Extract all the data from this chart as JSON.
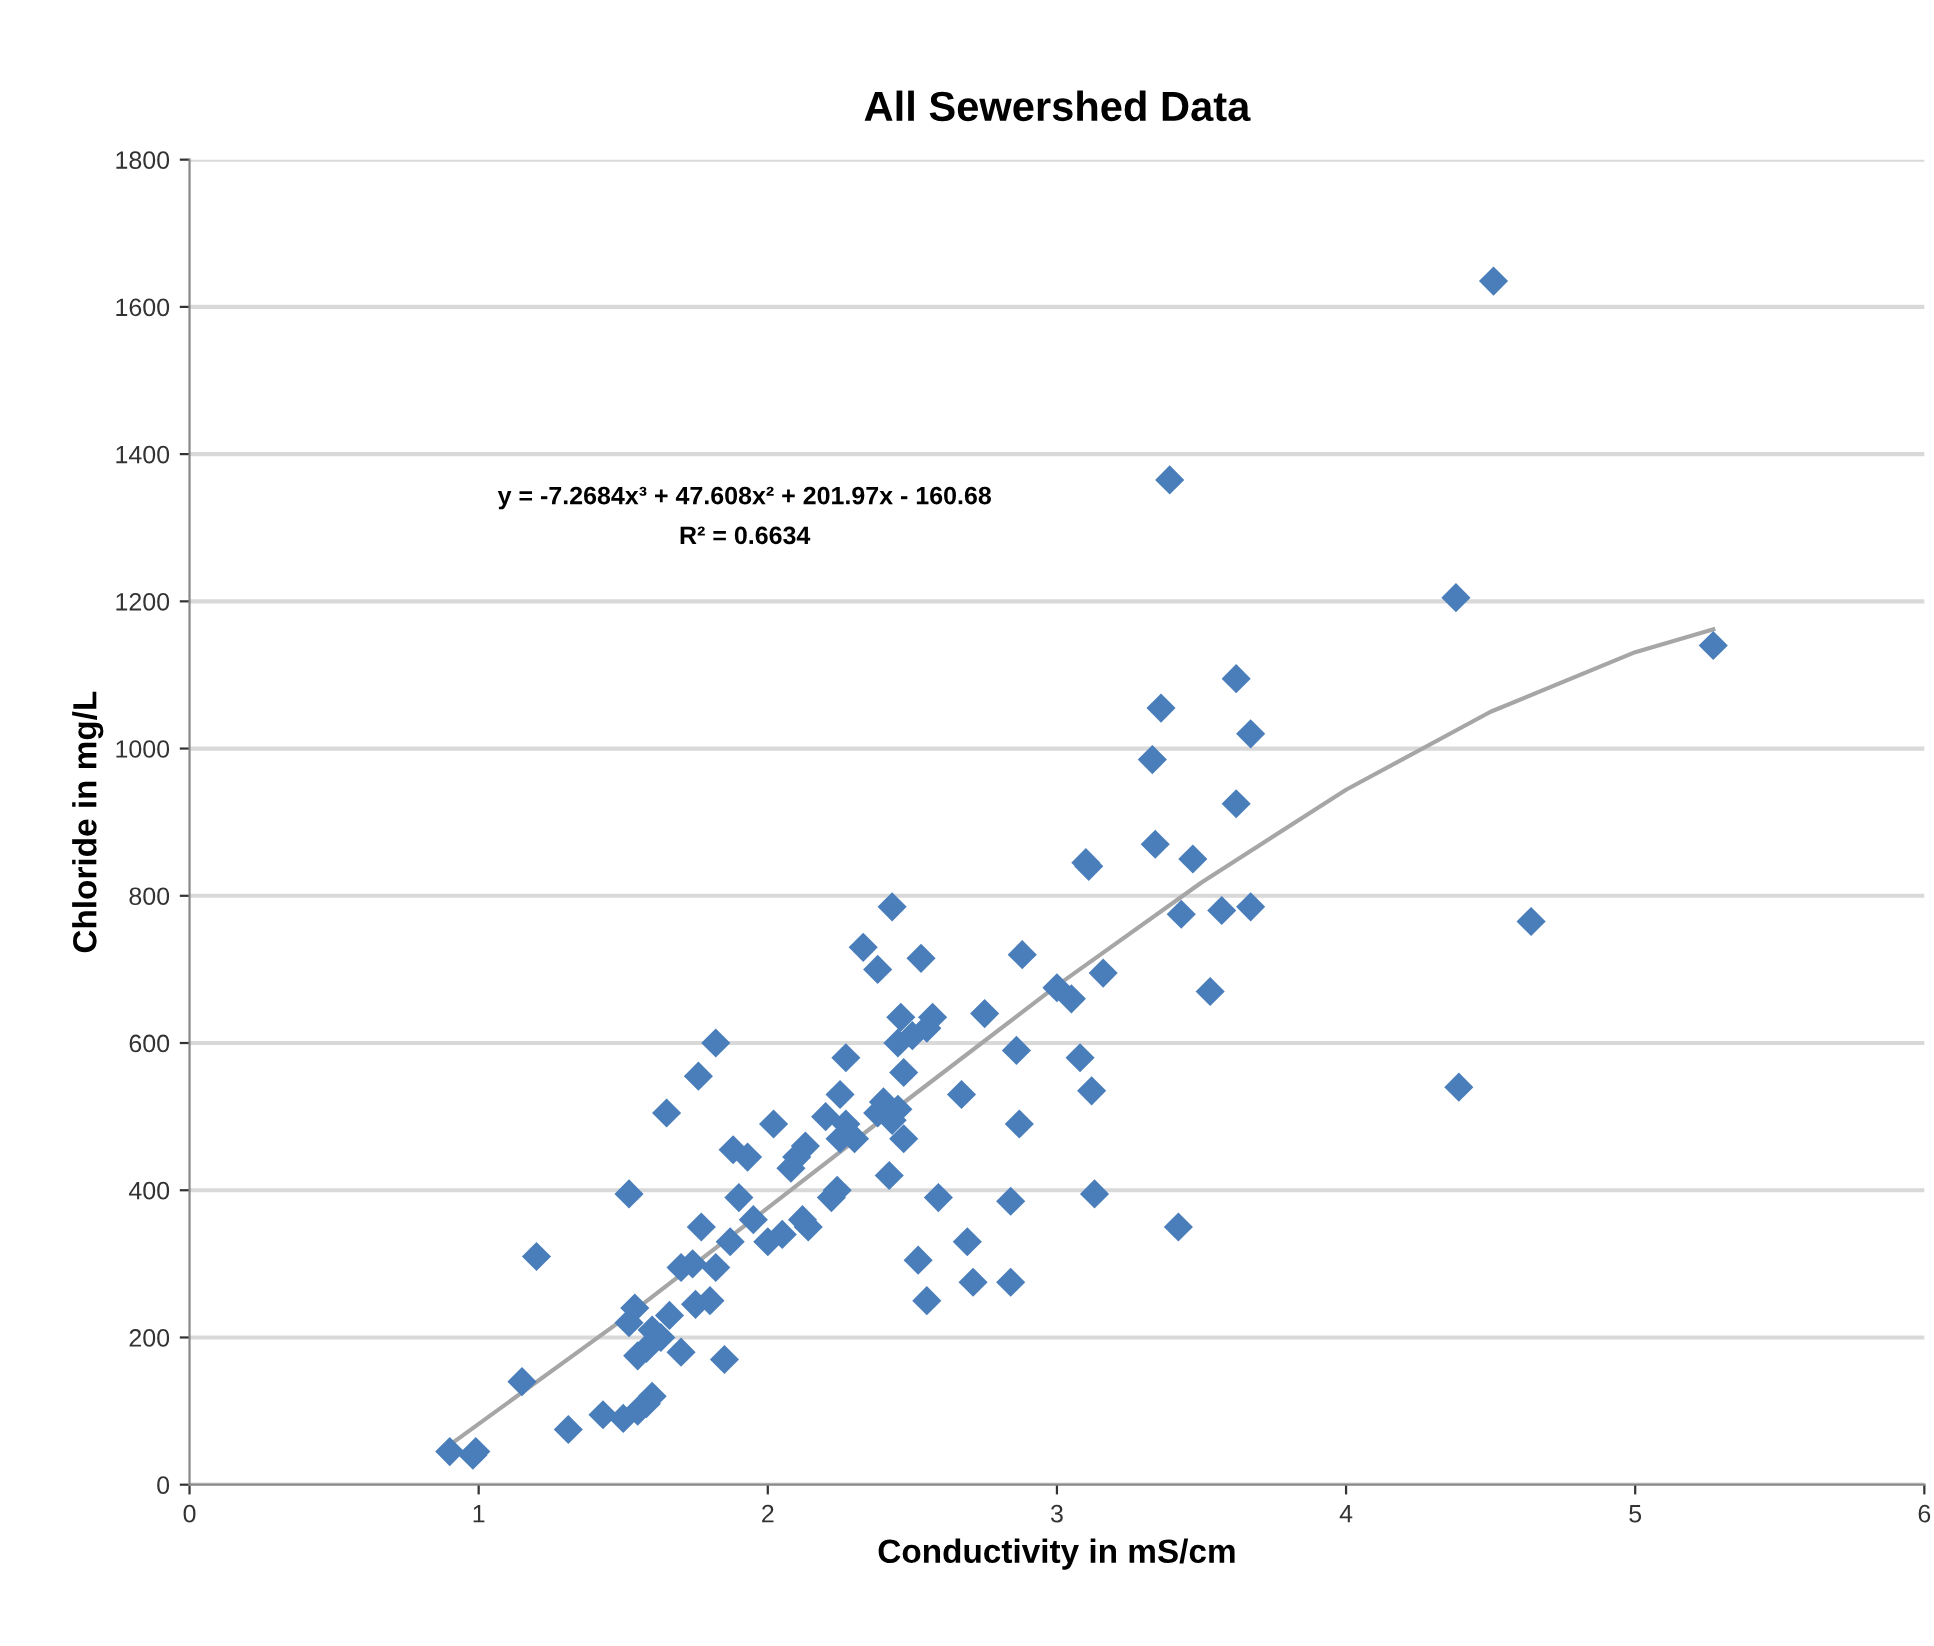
{
  "chart_data": {
    "type": "scatter",
    "title": "All Sewershed Data",
    "xlabel": "Conductivity in mS/cm",
    "ylabel": "Chloride in mg/L",
    "annotations": [
      "y = -7.2684x³ + 47.608x² + 201.97x - 160.68",
      "R² = 0.6634"
    ],
    "xlim": [
      0,
      6
    ],
    "xticks": [
      0,
      1,
      2,
      3,
      4,
      5,
      6
    ],
    "ylim": [
      0,
      1800
    ],
    "yticks": [
      0,
      200,
      400,
      600,
      800,
      1000,
      1200,
      1400,
      1600,
      1800
    ],
    "grid": "y",
    "marker": "diamond",
    "series": [
      {
        "color": "#4a7ebb",
        "x": [
          0.9,
          0.99,
          0.98,
          1.15,
          1.2,
          1.31,
          1.43,
          1.5,
          1.52,
          1.52,
          1.54,
          1.55,
          1.55,
          1.58,
          1.6,
          1.58,
          1.6,
          1.63,
          1.65,
          1.66,
          1.7,
          1.7,
          1.74,
          1.75,
          1.76,
          1.77,
          1.8,
          1.82,
          1.82,
          1.85,
          1.87,
          1.88,
          1.9,
          1.93,
          1.95,
          2.0,
          2.02,
          2.05,
          2.08,
          2.1,
          2.12,
          2.13,
          2.14,
          2.2,
          2.22,
          2.24,
          2.25,
          2.25,
          2.27,
          2.27,
          2.3,
          2.33,
          2.38,
          2.38,
          2.4,
          2.42,
          2.43,
          2.43,
          2.45,
          2.46,
          2.47,
          2.47,
          2.45,
          2.5,
          2.52,
          2.53,
          2.55,
          2.55,
          2.57,
          2.59,
          2.67,
          2.69,
          2.71,
          2.75,
          2.84,
          2.84,
          2.86,
          2.87,
          2.88,
          3.0,
          3.05,
          3.08,
          3.1,
          3.11,
          3.12,
          3.13,
          3.16,
          3.33,
          3.34,
          3.36,
          3.39,
          3.42,
          3.43,
          3.47,
          3.53,
          3.57,
          3.62,
          3.62,
          3.67,
          3.67,
          4.38,
          4.39,
          4.51,
          4.64,
          5.27
        ],
        "values": [
          45,
          45,
          40,
          140,
          310,
          75,
          95,
          90,
          395,
          220,
          240,
          100,
          175,
          110,
          120,
          185,
          210,
          200,
          505,
          230,
          180,
          295,
          300,
          245,
          555,
          350,
          250,
          600,
          295,
          170,
          330,
          455,
          390,
          445,
          360,
          330,
          490,
          340,
          430,
          445,
          360,
          460,
          350,
          500,
          390,
          400,
          470,
          530,
          580,
          490,
          470,
          730,
          700,
          505,
          520,
          420,
          785,
          495,
          600,
          635,
          560,
          470,
          510,
          610,
          305,
          715,
          620,
          250,
          635,
          390,
          530,
          330,
          275,
          640,
          275,
          385,
          590,
          490,
          720,
          675,
          660,
          580,
          845,
          840,
          535,
          395,
          695,
          985,
          870,
          1055,
          1365,
          350,
          775,
          850,
          670,
          780,
          1095,
          925,
          1020,
          785,
          1205,
          540,
          1635,
          765,
          1140
        ]
      },
      {
        "type": "line",
        "color": "#a6a6a6",
        "marker": "none",
        "line_style": "solid",
        "x": [
          0.9,
          1.5,
          2,
          2.5,
          3,
          3.5,
          4,
          4.5,
          5,
          5.27
        ],
        "values": [
          54,
          225,
          376,
          528,
          678,
          818,
          944,
          1050,
          1131,
          1162
        ]
      }
    ]
  }
}
